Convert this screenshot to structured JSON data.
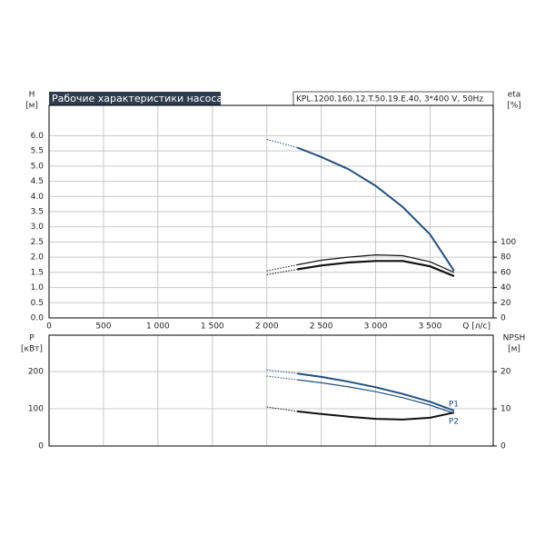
{
  "chart_data": [
    {
      "type": "line",
      "title": "Рабочие характеристики насоса",
      "subtitle": "KPL.1200.160.12.T.50.19.E.40, 3*400 V, 50Hz",
      "ylabel": "H",
      "yunit": "[м]",
      "y2label": "eta",
      "y2unit": "[%]",
      "xlabel": "Q [л/с]",
      "x": [
        2000,
        2280,
        2500,
        2750,
        3000,
        3250,
        3500,
        3720
      ],
      "xlim": [
        0,
        4080
      ],
      "xticks": [
        0,
        500,
        {
          "value": 1000,
          "label": "1 000"
        },
        {
          "value": 1500,
          "label": "1 500"
        },
        {
          "value": 2000,
          "label": "2 000"
        },
        {
          "value": 2500,
          "label": "2 500"
        },
        {
          "value": 3000,
          "label": "3 000"
        },
        {
          "value": 3500,
          "label": "3 500"
        }
      ],
      "ylim": [
        0,
        7
      ],
      "yticks": [
        {
          "value": 0,
          "label": "0.0"
        },
        0.5,
        {
          "value": 1,
          "label": "1.0"
        },
        1.5,
        {
          "value": 2,
          "label": "2.0"
        },
        2.5,
        {
          "value": 3,
          "label": "3.0"
        },
        3.5,
        {
          "value": 4,
          "label": "4.0"
        },
        4.5,
        {
          "value": 5,
          "label": "5.0"
        },
        5.5,
        {
          "value": 6,
          "label": "6.0"
        }
      ],
      "y2lim": [
        0,
        280
      ],
      "y2ticks": [
        0,
        20,
        40,
        60,
        80,
        100
      ],
      "grid": true,
      "series": [
        {
          "color": "#24507e",
          "width": 2,
          "values": [
            5.88,
            5.61,
            5.3,
            4.9,
            4.35,
            3.65,
            2.75,
            1.55
          ]
        },
        {
          "color": "#111111",
          "width": 1.2,
          "axis": "y2",
          "values": [
            62,
            70,
            76,
            80,
            83,
            82,
            74,
            60
          ]
        },
        {
          "color": "#111111",
          "width": 2.2,
          "axis": "y2",
          "values": [
            57,
            64,
            69,
            73,
            75,
            75,
            68,
            55
          ]
        }
      ]
    },
    {
      "type": "line",
      "ylabel": "P",
      "yunit": "[кВт]",
      "y2label": "NPSH",
      "y2unit": "[м]",
      "x": [
        2000,
        2280,
        2500,
        2750,
        3000,
        3250,
        3500,
        3720
      ],
      "xlim": [
        0,
        4080
      ],
      "xticks": [
        0,
        500,
        1000,
        1500,
        2000,
        2500,
        3000,
        3500
      ],
      "ylim": [
        0,
        298
      ],
      "yticks": [
        0,
        100,
        200
      ],
      "y2lim": [
        0,
        29.8
      ],
      "y2ticks": [
        0,
        10,
        20
      ],
      "grid": true,
      "series": [
        {
          "name": "P1",
          "color": "#24507e",
          "width": 2,
          "values": [
            205,
            195,
            186,
            173,
            158,
            140,
            119,
            95
          ]
        },
        {
          "name": "P2",
          "color": "#24507e",
          "width": 1.2,
          "values": [
            188,
            178,
            170,
            159,
            146,
            130,
            110,
            88
          ]
        },
        {
          "color": "#111111",
          "width": 2,
          "axis": "y2",
          "values": [
            10.5,
            9.3,
            8.6,
            7.9,
            7.3,
            7.1,
            7.6,
            9.0
          ]
        }
      ]
    }
  ]
}
